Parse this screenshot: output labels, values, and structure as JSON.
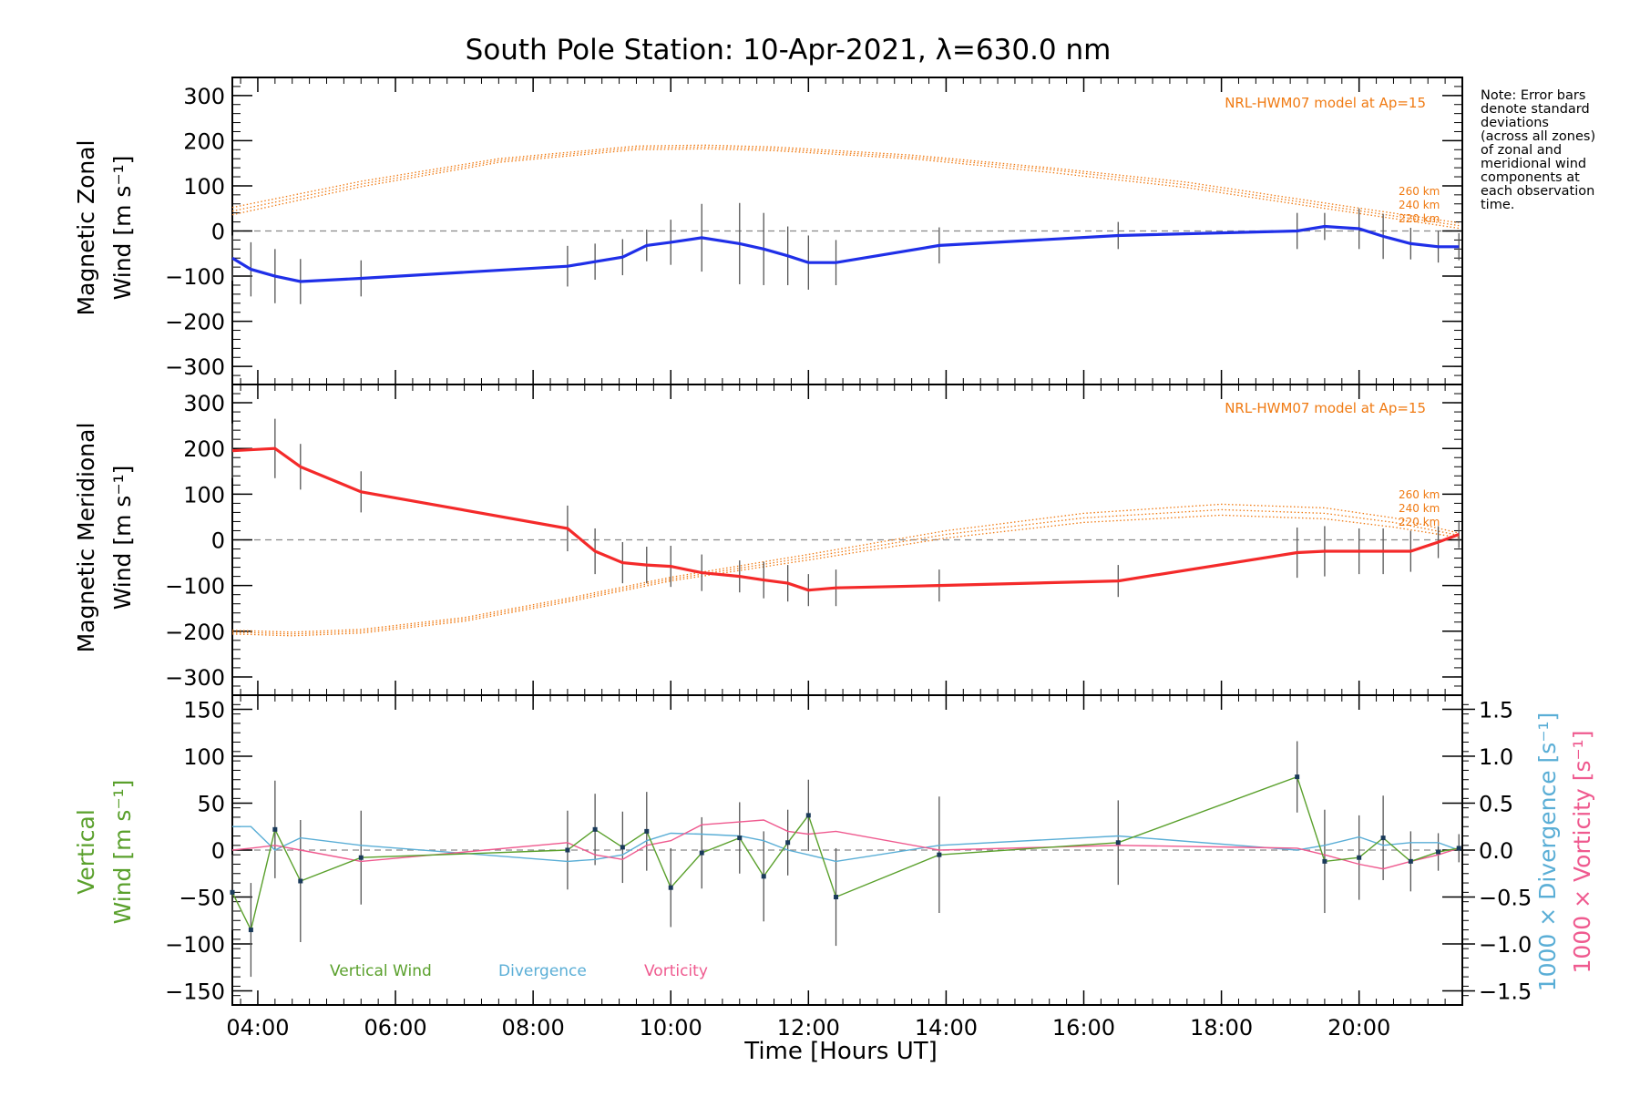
{
  "title": "South Pole Station: 10-Apr-2021, λ=630.0 nm",
  "note": [
    "Note: Error bars",
    "denote standard",
    "deviations",
    "(across all zones)",
    "of zonal and",
    "meridional wind",
    "components at",
    "each observation",
    "time."
  ],
  "model_label": "NRL-HWM07 model at Ap=15",
  "model_altitudes": [
    "260 km",
    "240 km",
    "220 km"
  ],
  "x_axis": {
    "label": "Time [Hours UT]",
    "range": [
      3.63,
      21.5
    ],
    "ticks": [
      4,
      6,
      8,
      10,
      12,
      14,
      16,
      18,
      20
    ],
    "tick_labels": [
      "04:00",
      "06:00",
      "08:00",
      "10:00",
      "12:00",
      "14:00",
      "16:00",
      "18:00",
      "20:00"
    ]
  },
  "colors": {
    "zonal": "#1f2fe8",
    "meridional": "#f42a2a",
    "model": "#f07a12",
    "vertical": "#5aa02c",
    "divergence": "#5aaed6",
    "vorticity": "#ef5a8f",
    "errorbar": "#555555",
    "zeroline": "#888888"
  },
  "chart_data": [
    {
      "id": "zonal",
      "type": "line",
      "ylabel_line1": "Magnetic Zonal",
      "ylabel_line2": "Wind [m s⁻¹]",
      "ylim": [
        -340,
        340
      ],
      "y_ticks": [
        -300,
        -200,
        -100,
        0,
        100,
        200,
        300
      ],
      "y_tick_labels": [
        "−300",
        "−200",
        "−100",
        "0",
        "100",
        "200",
        "300"
      ],
      "x": [
        3.63,
        3.9,
        4.25,
        4.62,
        5.5,
        8.5,
        8.9,
        9.3,
        9.65,
        10.0,
        10.45,
        11.0,
        11.35,
        11.7,
        12.0,
        12.4,
        13.9,
        16.5,
        19.1,
        19.5,
        20.0,
        20.35,
        20.75,
        21.15,
        21.45
      ],
      "values": [
        -60,
        -85,
        -100,
        -112,
        -105,
        -78,
        -68,
        -58,
        -32,
        -25,
        -15,
        -28,
        -40,
        -55,
        -70,
        -70,
        -32,
        -10,
        0,
        10,
        5,
        -12,
        -28,
        -35,
        -35
      ],
      "errors": [
        50,
        60,
        60,
        50,
        40,
        45,
        40,
        40,
        35,
        50,
        75,
        90,
        80,
        65,
        60,
        50,
        40,
        30,
        40,
        30,
        45,
        50,
        35,
        35,
        30
      ],
      "model_series": [
        {
          "name": "260 km",
          "x": [
            3.63,
            5.5,
            7.5,
            9.5,
            10.5,
            11.5,
            13.5,
            15.5,
            17.5,
            19.5,
            21.45
          ],
          "values": [
            52,
            110,
            160,
            188,
            190,
            186,
            168,
            140,
            108,
            62,
            18
          ]
        },
        {
          "name": "240 km",
          "x": [
            3.63,
            5.5,
            7.5,
            9.5,
            10.5,
            11.5,
            13.5,
            15.5,
            17.5,
            19.5,
            21.45
          ],
          "values": [
            44,
            104,
            156,
            184,
            186,
            182,
            164,
            136,
            102,
            56,
            12
          ]
        },
        {
          "name": "220 km",
          "x": [
            3.63,
            5.5,
            7.5,
            9.5,
            10.5,
            11.5,
            13.5,
            15.5,
            17.5,
            19.5,
            21.45
          ],
          "values": [
            36,
            98,
            152,
            180,
            182,
            178,
            160,
            130,
            96,
            50,
            6
          ]
        }
      ]
    },
    {
      "id": "meridional",
      "type": "line",
      "ylabel_line1": "Magnetic Meridional",
      "ylabel_line2": "Wind [m s⁻¹]",
      "ylim": [
        -340,
        340
      ],
      "y_ticks": [
        -300,
        -200,
        -100,
        0,
        100,
        200,
        300
      ],
      "y_tick_labels": [
        "−300",
        "−200",
        "−100",
        "0",
        "100",
        "200",
        "300"
      ],
      "x": [
        3.63,
        4.25,
        4.62,
        5.5,
        8.5,
        8.9,
        9.3,
        9.65,
        10.0,
        10.45,
        11.0,
        11.35,
        11.7,
        12.0,
        12.4,
        13.9,
        16.5,
        19.1,
        19.5,
        20.0,
        20.35,
        20.75,
        21.15,
        21.45
      ],
      "values": [
        195,
        200,
        160,
        105,
        25,
        -25,
        -50,
        -55,
        -58,
        -72,
        -80,
        -88,
        -95,
        -110,
        -105,
        -100,
        -90,
        -28,
        -25,
        -25,
        -25,
        -25,
        -5,
        12
      ],
      "errors": [
        60,
        65,
        50,
        45,
        50,
        50,
        45,
        40,
        45,
        40,
        35,
        40,
        40,
        35,
        40,
        35,
        35,
        55,
        55,
        50,
        50,
        45,
        35,
        30
      ],
      "model_series": [
        {
          "name": "260 km",
          "x": [
            3.63,
            4.5,
            5.5,
            7.0,
            8.5,
            10.0,
            12.0,
            14.0,
            16.0,
            18.0,
            19.5,
            20.5,
            21.45
          ],
          "values": [
            -198,
            -202,
            -196,
            -170,
            -128,
            -82,
            -32,
            20,
            58,
            78,
            70,
            48,
            15
          ],
          "y_offset": 0
        },
        {
          "name": "240 km",
          "x": [
            3.63,
            4.5,
            5.5,
            7.0,
            8.5,
            10.0,
            12.0,
            14.0,
            16.0,
            18.0,
            19.5,
            20.5,
            21.45
          ],
          "values": [
            -202,
            -206,
            -200,
            -174,
            -132,
            -86,
            -38,
            12,
            48,
            66,
            58,
            38,
            10
          ]
        },
        {
          "name": "220 km",
          "x": [
            3.63,
            4.5,
            5.5,
            7.0,
            8.5,
            10.0,
            12.0,
            14.0,
            16.0,
            18.0,
            19.5,
            20.5,
            21.45
          ],
          "values": [
            -206,
            -210,
            -204,
            -178,
            -136,
            -90,
            -44,
            4,
            38,
            54,
            46,
            28,
            5
          ]
        }
      ]
    },
    {
      "id": "vertical",
      "type": "line",
      "ylabel_line1": "Vertical",
      "ylabel_line2": "Wind [m s⁻¹]",
      "ylim": [
        -165,
        165
      ],
      "y_ticks": [
        -150,
        -100,
        -50,
        0,
        50,
        100,
        150
      ],
      "y_tick_labels": [
        "−150",
        "−100",
        "−50",
        "0",
        "50",
        "100",
        "150"
      ],
      "right_ylim": [
        -1.65,
        1.65
      ],
      "right_ticks": [
        -1.5,
        -1.0,
        -0.5,
        0.0,
        0.5,
        1.0,
        1.5
      ],
      "right_tick_labels": [
        "−1.5",
        "−1.0",
        "−0.5",
        "0.0",
        "0.5",
        "1.0",
        "1.5"
      ],
      "right_label_div": "1000 × Divergence [s⁻¹]",
      "right_label_vor": "1000 × Vorticity [s⁻¹]",
      "legend": [
        "Vertical Wind",
        "Divergence",
        "Vorticity"
      ],
      "x": [
        3.63,
        3.9,
        4.25,
        4.62,
        5.5,
        8.5,
        8.9,
        9.3,
        9.65,
        10.0,
        10.45,
        11.0,
        11.35,
        11.7,
        12.0,
        12.4,
        13.9,
        16.5,
        19.1,
        19.5,
        20.0,
        20.35,
        20.75,
        21.15,
        21.45
      ],
      "values": [
        -45,
        -85,
        22,
        -33,
        -8,
        0,
        22,
        3,
        20,
        -40,
        -3,
        13,
        -28,
        8,
        37,
        -50,
        -5,
        8,
        78,
        -12,
        -8,
        13,
        -12,
        -2,
        2
      ],
      "errors": [
        40,
        50,
        52,
        65,
        50,
        42,
        38,
        38,
        42,
        42,
        38,
        38,
        48,
        35,
        38,
        52,
        62,
        45,
        38,
        55,
        45,
        45,
        32,
        20,
        15
      ],
      "divergence": {
        "x": [
          3.63,
          3.9,
          4.25,
          4.62,
          5.5,
          8.5,
          8.9,
          9.3,
          9.65,
          10.0,
          10.45,
          11.0,
          11.35,
          11.7,
          12.0,
          12.4,
          13.9,
          16.5,
          19.1,
          19.5,
          20.0,
          20.35,
          20.75,
          21.15,
          21.45
        ],
        "values": [
          0.25,
          0.25,
          0.0,
          0.13,
          0.05,
          -0.12,
          -0.1,
          -0.05,
          0.1,
          0.18,
          0.17,
          0.15,
          0.1,
          0.0,
          -0.05,
          -0.12,
          0.05,
          0.15,
          0.0,
          0.05,
          0.14,
          0.05,
          0.08,
          0.08,
          0.0
        ]
      },
      "vorticity": {
        "x": [
          3.63,
          3.9,
          4.25,
          4.62,
          5.5,
          8.5,
          8.9,
          9.3,
          9.65,
          10.0,
          10.45,
          11.0,
          11.35,
          11.7,
          12.0,
          12.4,
          13.9,
          16.5,
          19.1,
          19.5,
          20.0,
          20.35,
          20.75,
          21.15,
          21.45
        ],
        "values": [
          0.0,
          0.02,
          0.05,
          0.0,
          -0.12,
          0.08,
          -0.05,
          -0.1,
          0.05,
          0.1,
          0.27,
          0.3,
          0.32,
          0.2,
          0.17,
          0.2,
          0.0,
          0.05,
          0.02,
          -0.05,
          -0.15,
          -0.2,
          -0.12,
          -0.05,
          0.02
        ]
      }
    }
  ]
}
